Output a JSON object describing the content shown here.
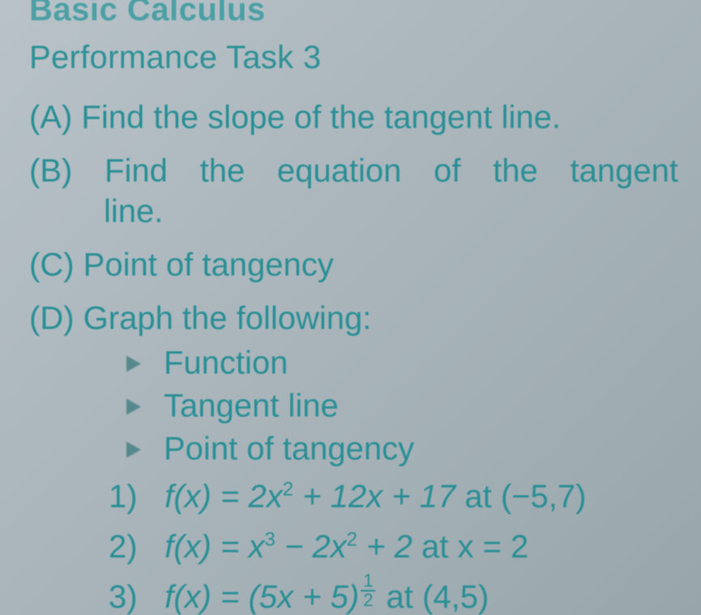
{
  "header": {
    "course": "Basic Calculus",
    "task": "Performance Task 3"
  },
  "parts": {
    "a": "(A) Find the slope of the tangent line.",
    "b_line1_words": [
      "(B)",
      "Find",
      "the",
      "equation",
      "of",
      "the",
      "tangent"
    ],
    "b_line2": "line.",
    "c": "(C) Point of tangency",
    "d": "(D) Graph the following:"
  },
  "bullets": {
    "b1": "Function",
    "b2": "Tangent line",
    "b3": "Point of tangency"
  },
  "equations": {
    "e1": {
      "num": "1)",
      "lhs": "f(x) = 2x",
      "sup1": "2",
      "mid": " + 12x + 17 ",
      "tail": "at (−5,7)"
    },
    "e2": {
      "num": "2)",
      "lhs": "f(x) = x",
      "sup1": "3",
      "mid1": " − 2x",
      "sup2": "2",
      "mid2": " + 2 ",
      "tail": "at x = 2"
    },
    "e3": {
      "num": "3)",
      "lhs": "f(x) = (5x + 5)",
      "frac_n": "1",
      "frac_d": "2",
      "tail": " at (4,5)"
    }
  },
  "style": {
    "text_color": "#2a8f95",
    "background": "#a8b4ba",
    "font_size_pt": 30
  }
}
